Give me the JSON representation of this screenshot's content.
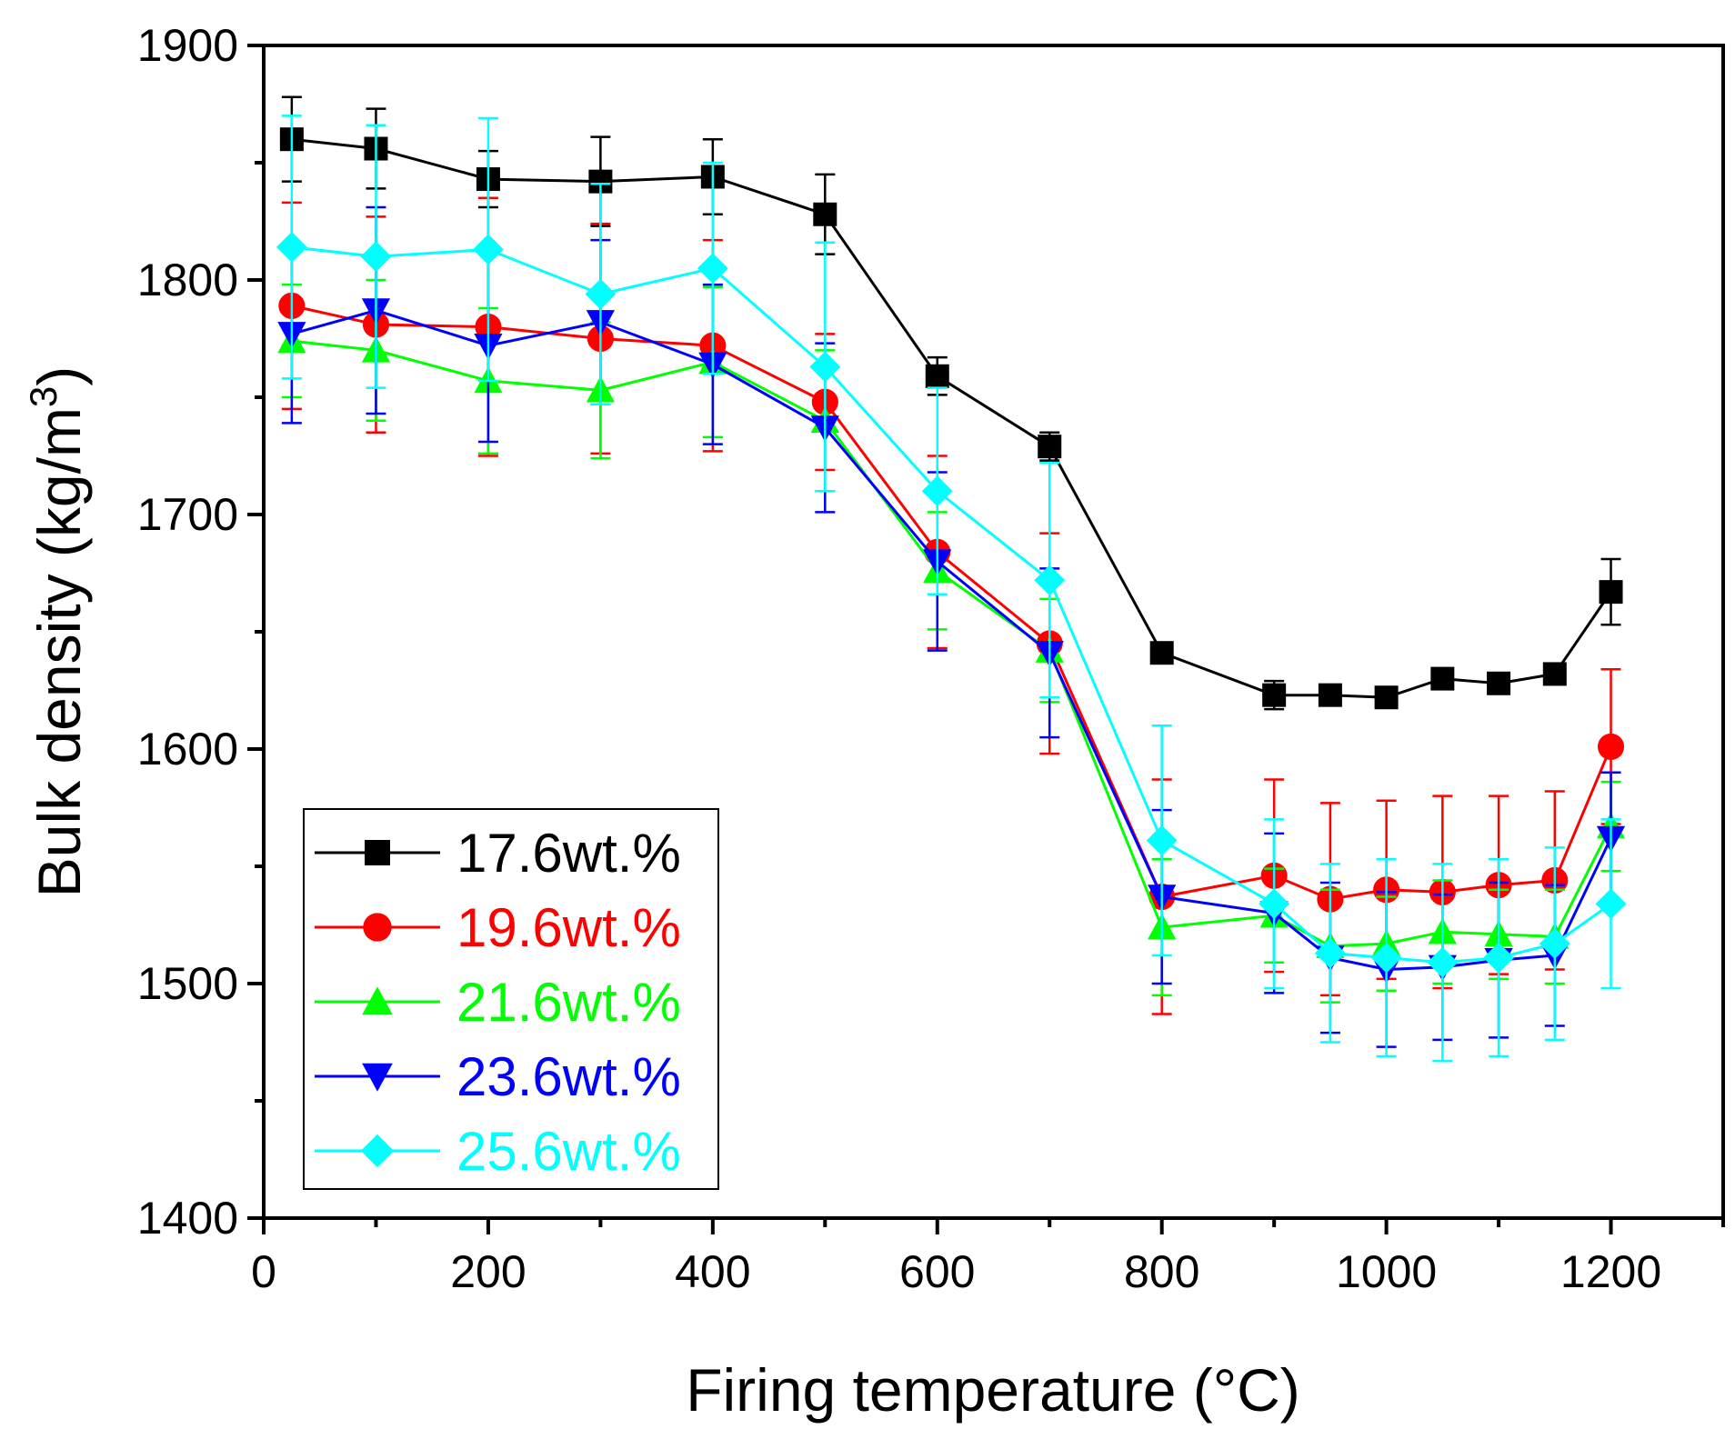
{
  "chart_data": {
    "type": "line",
    "title": "",
    "xlabel": "Firing temperature (°C)",
    "ylabel_main": "Bulk density (kg/m",
    "ylabel_sup": "3",
    "ylabel_close": ")",
    "xlim": [
      0,
      1300
    ],
    "ylim": [
      1400,
      1900
    ],
    "xticks": [
      0,
      200,
      400,
      600,
      800,
      1000,
      1200
    ],
    "yticks": [
      1400,
      1500,
      1600,
      1700,
      1800,
      1900
    ],
    "x": [
      25,
      100,
      200,
      300,
      400,
      500,
      600,
      700,
      800,
      900,
      950,
      1000,
      1050,
      1100,
      1150,
      1200
    ],
    "legend_position": "bottom-left",
    "series": [
      {
        "name": "17.6wt.%",
        "color": "#000000",
        "marker": "square",
        "values": [
          1860,
          1856,
          1843,
          1842,
          1844,
          1828,
          1759,
          1729,
          1641,
          1623,
          1623,
          1622,
          1630,
          1628,
          1632,
          1667
        ],
        "errors": [
          18,
          17,
          12,
          19,
          16,
          17,
          8,
          6,
          4,
          6,
          4,
          3,
          4,
          3,
          4,
          14
        ]
      },
      {
        "name": "19.6wt.%",
        "color": "#ff0000",
        "marker": "circle",
        "values": [
          1789,
          1781,
          1780,
          1775,
          1772,
          1748,
          1684,
          1645,
          1537,
          1546,
          1536,
          1540,
          1539,
          1542,
          1544,
          1601
        ],
        "errors": [
          44,
          46,
          55,
          49,
          45,
          29,
          41,
          47,
          50,
          41,
          41,
          38,
          41,
          38,
          38,
          33
        ]
      },
      {
        "name": "21.6wt.%",
        "color": "#00ff00",
        "marker": "triangle-up",
        "values": [
          1774,
          1770,
          1757,
          1753,
          1765,
          1740,
          1676,
          1642,
          1524,
          1529,
          1516,
          1517,
          1522,
          1521,
          1520,
          1567
        ],
        "errors": [
          24,
          30,
          31,
          29,
          32,
          30,
          25,
          22,
          29,
          20,
          24,
          20,
          22,
          19,
          20,
          19
        ]
      },
      {
        "name": "23.6wt.%",
        "color": "#0000ff",
        "marker": "triangle-down",
        "values": [
          1777,
          1787,
          1772,
          1782,
          1764,
          1737,
          1680,
          1641,
          1537,
          1530,
          1511,
          1506,
          1507,
          1510,
          1512,
          1562
        ],
        "errors": [
          38,
          44,
          41,
          35,
          34,
          36,
          38,
          36,
          37,
          34,
          32,
          33,
          31,
          33,
          30,
          28
        ]
      },
      {
        "name": "25.6wt.%",
        "color": "#00ffff",
        "marker": "diamond",
        "values": [
          1814,
          1810,
          1813,
          1794,
          1805,
          1763,
          1710,
          1672,
          1561,
          1534,
          1513,
          1511,
          1509,
          1511,
          1517,
          1534
        ],
        "errors": [
          56,
          56,
          56,
          47,
          45,
          53,
          44,
          50,
          49,
          36,
          38,
          42,
          42,
          42,
          41,
          36
        ]
      }
    ]
  }
}
